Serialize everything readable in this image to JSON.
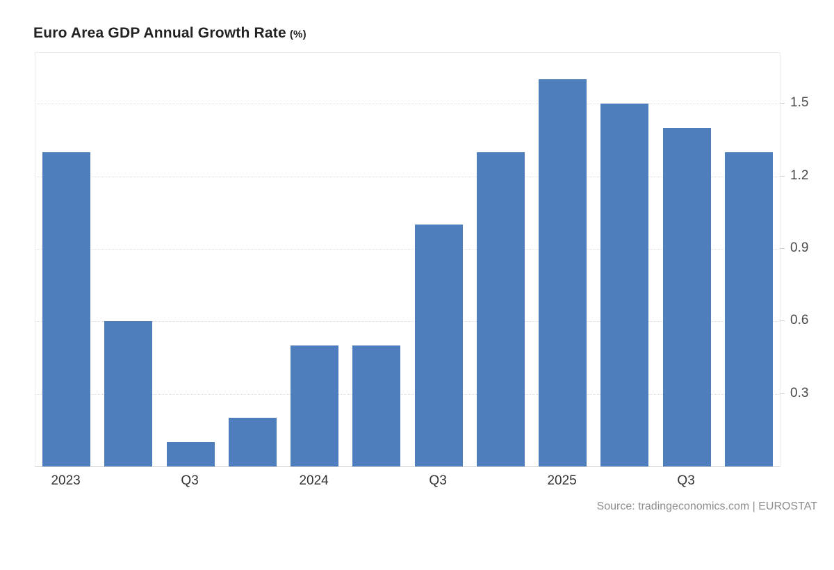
{
  "title": {
    "main": "Euro Area GDP Annual Growth Rate",
    "unit": "(%)"
  },
  "chart_data": {
    "type": "bar",
    "title": "Euro Area GDP Annual Growth Rate (%)",
    "categories": [
      "2023 Q1",
      "2023 Q2",
      "2023 Q3",
      "2023 Q4",
      "2024 Q1",
      "2024 Q2",
      "2024 Q3",
      "2024 Q4",
      "2025 Q1",
      "2025 Q2",
      "2025 Q3",
      "2025 Q4"
    ],
    "values": [
      1.3,
      0.6,
      0.1,
      0.2,
      0.5,
      0.5,
      1.0,
      1.3,
      1.6,
      1.5,
      1.4,
      1.3
    ],
    "x_tick_labels": [
      {
        "bar_index": 0,
        "label": "2023"
      },
      {
        "bar_index": 2,
        "label": "Q3"
      },
      {
        "bar_index": 4,
        "label": "2024"
      },
      {
        "bar_index": 6,
        "label": "Q3"
      },
      {
        "bar_index": 8,
        "label": "2025"
      },
      {
        "bar_index": 10,
        "label": "Q3"
      }
    ],
    "xlabel": "",
    "ylabel": "",
    "yticks": [
      0.3,
      0.6,
      0.9,
      1.2,
      1.5
    ],
    "ylim": [
      0,
      1.71
    ],
    "yaxis_side": "right",
    "grid": "horizontal-dotted",
    "legend": "none",
    "bar_color": "#4e7fbc",
    "source": "Source: tradingeconomics.com | EUROSTAT"
  }
}
